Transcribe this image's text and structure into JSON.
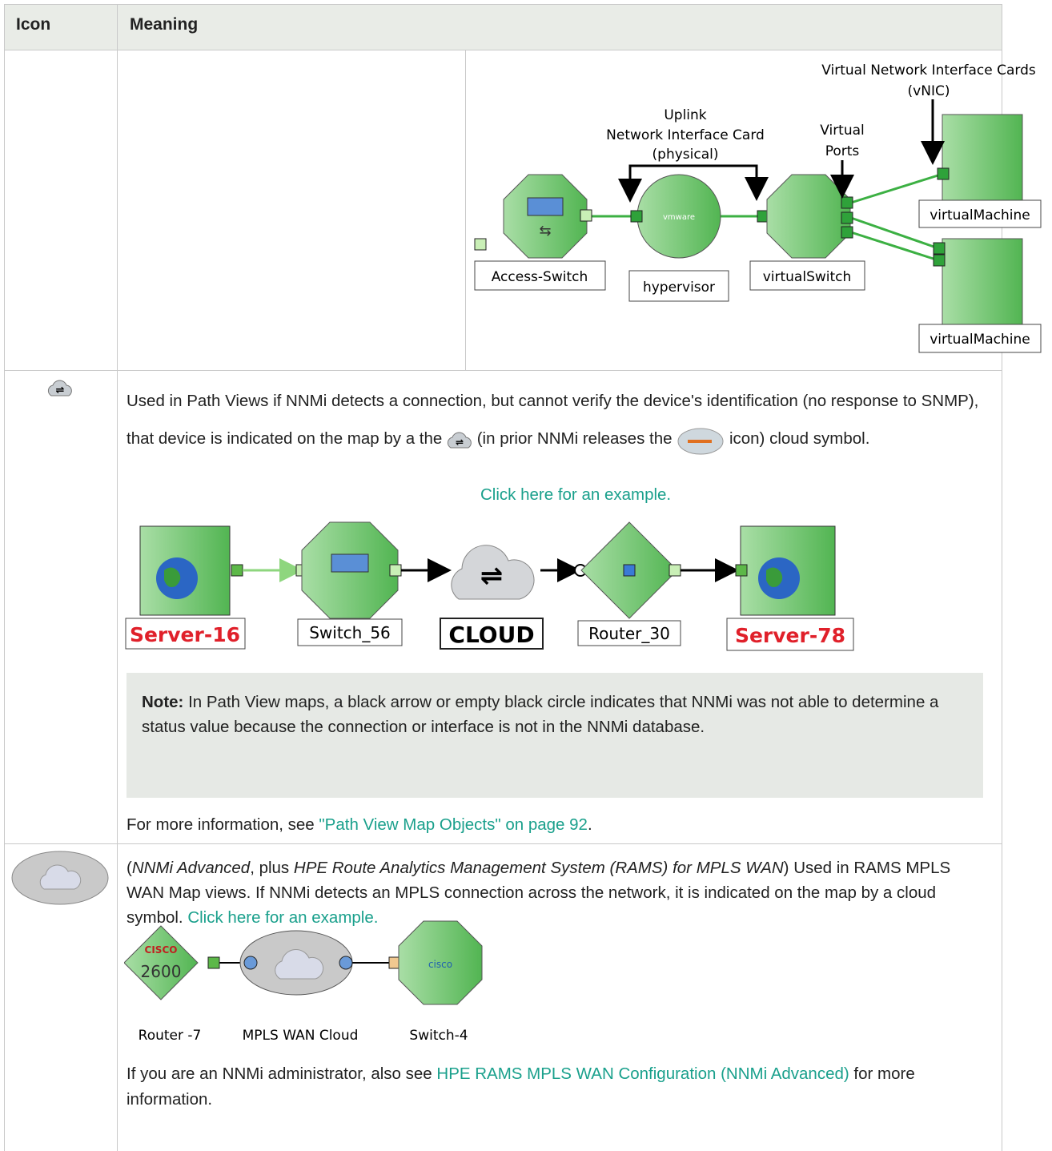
{
  "header": {
    "icon": "Icon",
    "meaning": "Meaning"
  },
  "vm_diagram": {
    "vnic_line_1": "Virtual Network Interface Cards",
    "vnic_line_2": "(vNIC)",
    "uplink_line_1": "Uplink",
    "uplink_line_2": "Network Interface Card",
    "uplink_line_3": "(physical)",
    "ports_line_1": "Virtual",
    "ports_line_2": "Ports",
    "access_switch": "Access-Switch",
    "hypervisor": "hypervisor",
    "vmware": "vmware",
    "virtual_switch": "virtualSwitch",
    "virtual_machine_1": "virtualMachine",
    "virtual_machine_2": "virtualMachine"
  },
  "path_row": {
    "text_1": "Used in Path Views if NNMi detects a connection, but cannot verify the device's identification (no response to SNMP), that device is indicated on the map by a the",
    "text_2": "(in prior NNMi releases the",
    "text_3": "icon) cloud symbol.",
    "example_link": "Click here for an example.",
    "diagram": {
      "server_16": "Server-16",
      "switch_56": "Switch_56",
      "cloud": "CLOUD",
      "router_30": "Router_30",
      "server_78": "Server-78"
    },
    "note_label": "Note:",
    "note_text": "In Path View maps, a black arrow or empty black circle indicates that NNMi was not able to determine a status value because the connection or interface is not in the NNMi database.",
    "more_info_text": "For more information, see ",
    "more_info_link": "\"Path View Map Objects\" on page 92",
    "more_info_end": "."
  },
  "mpls_row": {
    "open_paren": "(",
    "product_1": "NNMi Advanced",
    "plus": ", plus ",
    "product_2": "HPE Route Analytics Management System (RAMS) for MPLS WAN",
    "text": ") Used in RAMS MPLS WAN Map views. If NNMi detects an MPLS connection across the network, it is indicated on the map by a cloud symbol. ",
    "example_link": "Click here for an example.",
    "diagram": {
      "cisco_logo": "CISCO",
      "model": "2600",
      "router": "Router -7",
      "cloud": "MPLS WAN Cloud",
      "switch": "Switch-4",
      "switch_logo": "cisco"
    },
    "admin_text": "If you are an NNMi administrator, also see ",
    "admin_link": "HPE RAMS MPLS WAN Configuration (NNMi Advanced)",
    "admin_end": " for more information."
  }
}
